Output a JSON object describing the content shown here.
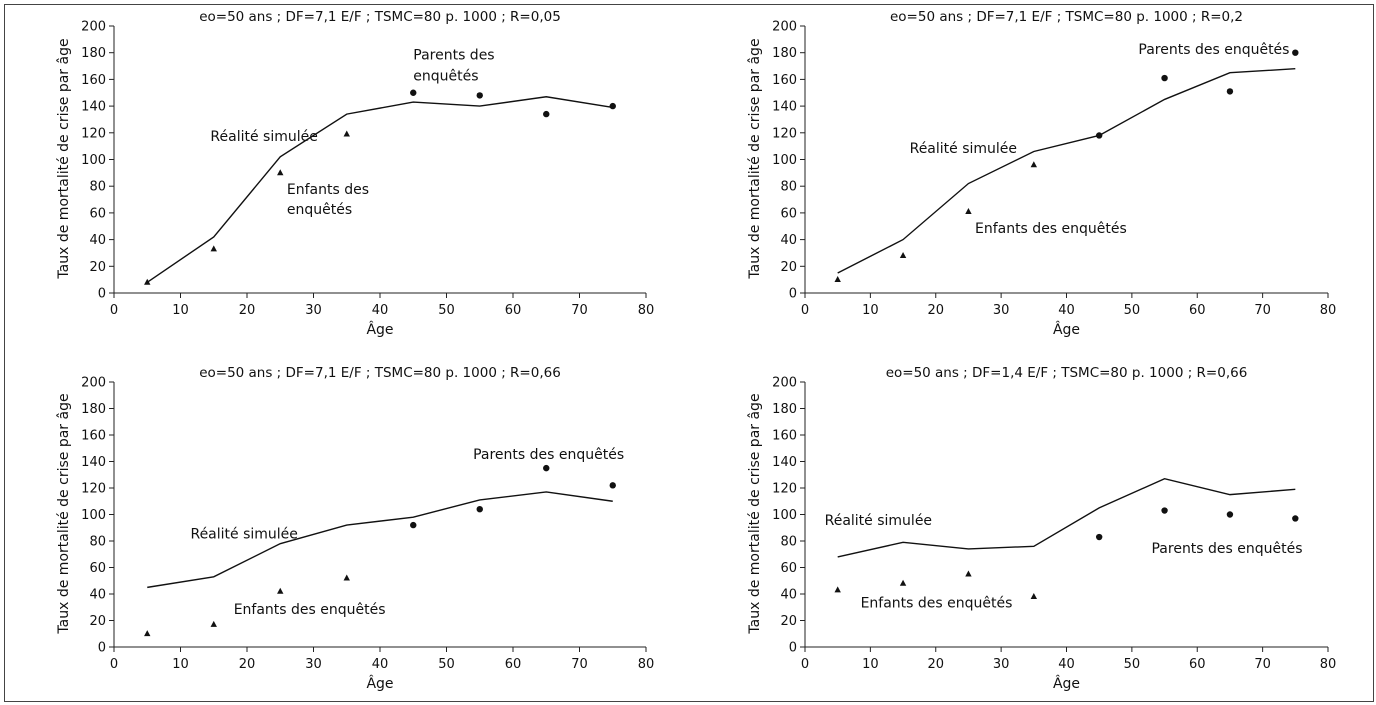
{
  "chart_data": [
    {
      "type": "line",
      "title": "eo=50 ans ; DF=7,1 E/F ; TSMC=80 p. 1000 ; R=0,05",
      "xlabel": "Âge",
      "ylabel": "Taux de mortalité de crise par âge",
      "xlim": [
        0,
        80
      ],
      "ylim": [
        0,
        200
      ],
      "xticks": [
        "0",
        "10",
        "20",
        "30",
        "40",
        "50",
        "60",
        "70",
        "80"
      ],
      "yticks": [
        "0",
        "20",
        "40",
        "60",
        "80",
        "100",
        "120",
        "140",
        "160",
        "180",
        "200"
      ],
      "grid": false,
      "series": [
        {
          "name": "Réalité simulée",
          "style": "line",
          "x": [
            5,
            15,
            25,
            35,
            45,
            55,
            65,
            75
          ],
          "y": [
            8,
            42,
            102,
            134,
            143,
            140,
            147,
            139
          ]
        },
        {
          "name": "Enfants des enquêtés",
          "style": "triangle",
          "x": [
            5,
            15,
            25,
            35
          ],
          "y": [
            8,
            33,
            90,
            119
          ]
        },
        {
          "name": "Parents des enquêtés",
          "style": "circle",
          "x": [
            45,
            55,
            65,
            75
          ],
          "y": [
            150,
            148,
            134,
            140
          ]
        }
      ],
      "annotations": [
        {
          "text": "Réalité simulée",
          "series": "Réalité simulée",
          "x": 14.5,
          "y": 114,
          "anchor": "start"
        },
        {
          "text": "Enfants des",
          "series": "Enfants des enquêtés",
          "x": 26,
          "y": 74,
          "anchor": "start"
        },
        {
          "text": "enquêtés",
          "series": "Enfants des enquêtés",
          "x": 26,
          "y": 59,
          "anchor": "start"
        },
        {
          "text": "Parents des",
          "series": "Parents des enquêtés",
          "x": 45,
          "y": 175,
          "anchor": "start"
        },
        {
          "text": "enquêtés",
          "series": "Parents des enquêtés",
          "x": 45,
          "y": 159,
          "anchor": "start"
        }
      ]
    },
    {
      "type": "line",
      "title": "eo=50 ans ; DF=7,1 E/F ; TSMC=80 p. 1000 ; R=0,2",
      "xlabel": "Âge",
      "ylabel": "Taux de mortalité de crise par âge",
      "xlim": [
        0,
        80
      ],
      "ylim": [
        0,
        200
      ],
      "xticks": [
        "0",
        "10",
        "20",
        "30",
        "40",
        "50",
        "60",
        "70",
        "80"
      ],
      "yticks": [
        "0",
        "20",
        "40",
        "60",
        "80",
        "100",
        "120",
        "140",
        "160",
        "180",
        "200"
      ],
      "grid": false,
      "series": [
        {
          "name": "Réalité simulée",
          "style": "line",
          "x": [
            5,
            15,
            25,
            35,
            45,
            55,
            65,
            75
          ],
          "y": [
            15,
            40,
            82,
            106,
            118,
            145,
            165,
            168
          ]
        },
        {
          "name": "Enfants des enquêtés",
          "style": "triangle",
          "x": [
            5,
            15,
            25,
            35
          ],
          "y": [
            10,
            28,
            61,
            96
          ]
        },
        {
          "name": "Parents des enquêtés",
          "style": "circle",
          "x": [
            45,
            55,
            65,
            75
          ],
          "y": [
            118,
            161,
            151,
            180
          ]
        }
      ],
      "annotations": [
        {
          "text": "Réalité simulée",
          "series": "Réalité simulée",
          "x": 16,
          "y": 105,
          "anchor": "start"
        },
        {
          "text": "Enfants des enquêtés",
          "series": "Enfants des enquêtés",
          "x": 26,
          "y": 45,
          "anchor": "start"
        },
        {
          "text": "Parents des enquêtés",
          "series": "Parents des enquêtés",
          "x": 51,
          "y": 179,
          "anchor": "start"
        }
      ]
    },
    {
      "type": "line",
      "title": "eo=50 ans ; DF=7,1 E/F ; TSMC=80 p. 1000 ; R=0,66",
      "xlabel": "Âge",
      "ylabel": "Taux de mortalité de crise par âge",
      "xlim": [
        0,
        80
      ],
      "ylim": [
        0,
        200
      ],
      "xticks": [
        "0",
        "10",
        "20",
        "30",
        "40",
        "50",
        "60",
        "70",
        "80"
      ],
      "yticks": [
        "0",
        "20",
        "40",
        "60",
        "80",
        "100",
        "120",
        "140",
        "160",
        "180",
        "200"
      ],
      "grid": false,
      "series": [
        {
          "name": "Réalité simulée",
          "style": "line",
          "x": [
            5,
            15,
            25,
            35,
            45,
            55,
            65,
            75
          ],
          "y": [
            45,
            53,
            78,
            92,
            98,
            111,
            117,
            110
          ]
        },
        {
          "name": "Enfants des enquêtés",
          "style": "triangle",
          "x": [
            5,
            15,
            25,
            35
          ],
          "y": [
            10,
            17,
            42,
            52
          ]
        },
        {
          "name": "Parents des enquêtés",
          "style": "circle",
          "x": [
            45,
            55,
            65,
            75
          ],
          "y": [
            92,
            104,
            135,
            122
          ]
        }
      ],
      "annotations": [
        {
          "text": "Réalité simulée",
          "series": "Réalité simulée",
          "x": 11.5,
          "y": 82,
          "anchor": "start"
        },
        {
          "text": "Enfants des enquêtés",
          "series": "Enfants des enquêtés",
          "x": 18,
          "y": 25,
          "anchor": "start"
        },
        {
          "text": "Parents des enquêtés",
          "series": "Parents des enquêtés",
          "x": 54,
          "y": 142,
          "anchor": "start"
        }
      ]
    },
    {
      "type": "line",
      "title": "eo=50 ans ; DF=1,4 E/F ; TSMC=80 p. 1000 ;  R=0,66",
      "xlabel": "Âge",
      "ylabel": "Taux de mortalité de crise par âge",
      "xlim": [
        0,
        80
      ],
      "ylim": [
        0,
        200
      ],
      "xticks": [
        "0",
        "10",
        "20",
        "30",
        "40",
        "50",
        "60",
        "70",
        "80"
      ],
      "yticks": [
        "0",
        "20",
        "40",
        "60",
        "80",
        "100",
        "120",
        "140",
        "160",
        "180",
        "200"
      ],
      "grid": false,
      "series": [
        {
          "name": "Réalité simulée",
          "style": "line",
          "x": [
            5,
            15,
            25,
            35,
            45,
            55,
            65,
            75
          ],
          "y": [
            68,
            79,
            74,
            76,
            105,
            127,
            115,
            119
          ]
        },
        {
          "name": "Enfants des enquêtés",
          "style": "triangle",
          "x": [
            5,
            15,
            25,
            35
          ],
          "y": [
            43,
            48,
            55,
            38
          ]
        },
        {
          "name": "Parents des enquêtés",
          "style": "circle",
          "x": [
            45,
            55,
            65,
            75
          ],
          "y": [
            83,
            103,
            100,
            97
          ]
        }
      ],
      "annotations": [
        {
          "text": "Réalité simulée",
          "series": "Réalité simulée",
          "x": 3,
          "y": 92,
          "anchor": "start"
        },
        {
          "text": "Enfants des enquêtés",
          "series": "Enfants des enquêtés",
          "x": 8.5,
          "y": 30,
          "anchor": "start"
        },
        {
          "text": "Parents des enquêtés",
          "series": "Parents des enquêtés",
          "x": 53,
          "y": 71,
          "anchor": "start"
        }
      ]
    }
  ]
}
